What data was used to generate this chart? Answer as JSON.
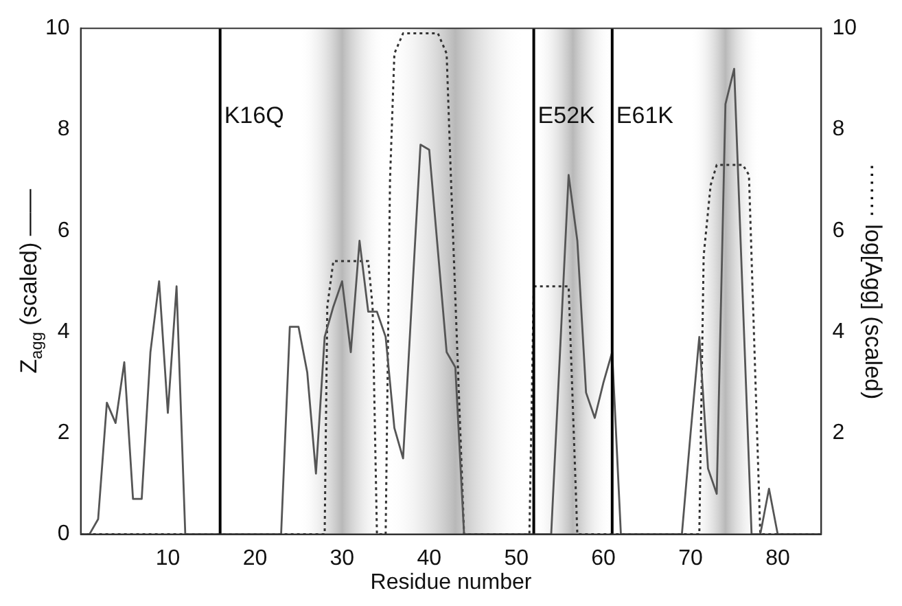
{
  "chart_data": {
    "type": "line",
    "xlabel": "Residue number",
    "ylabel": "Z$_{agg}$ (scaled) ——",
    "y2label": "······· log[Agg] (scaled)",
    "xlim": [
      0,
      85
    ],
    "xticks": [
      10,
      20,
      30,
      40,
      50,
      60,
      70,
      80
    ],
    "ylim": [
      0,
      10
    ],
    "yticks": [
      0,
      2,
      4,
      6,
      8,
      10
    ],
    "y2lim": [
      0,
      10
    ],
    "y2ticks": [
      2,
      4,
      6,
      8,
      10
    ],
    "grid": false,
    "legend": false,
    "marker": "none",
    "series": [
      {
        "color": "#555555",
        "line_style": "solid",
        "x": [
          0,
          1,
          2,
          3,
          4,
          5,
          6,
          7,
          8,
          9,
          10,
          11,
          12,
          23,
          24,
          25,
          26,
          27,
          28,
          29,
          30,
          31,
          32,
          33,
          34,
          35,
          36,
          37,
          39,
          40,
          42,
          43,
          44,
          54,
          56,
          57,
          58,
          59,
          60,
          61,
          62,
          69,
          70,
          71,
          72,
          73,
          74,
          75,
          77,
          78,
          79,
          80,
          85
        ],
        "values": [
          0,
          0,
          0.3,
          2.6,
          2.2,
          3.4,
          0.7,
          0.7,
          3.6,
          5.0,
          2.4,
          4.9,
          0,
          0,
          4.1,
          4.1,
          3.2,
          1.2,
          3.9,
          4.5,
          5.0,
          3.6,
          5.8,
          4.4,
          4.4,
          3.9,
          2.1,
          1.5,
          7.7,
          7.6,
          3.6,
          3.3,
          0,
          0,
          7.1,
          5.8,
          2.8,
          2.3,
          3.0,
          3.6,
          0,
          0,
          2.0,
          3.9,
          1.3,
          0.8,
          8.5,
          9.2,
          0,
          0,
          0.9,
          0,
          0
        ]
      },
      {
        "color": "#333333",
        "line_style": "dotted",
        "axis": "y2",
        "x": [
          0,
          28,
          28.3,
          29,
          33,
          33.5,
          34,
          35,
          35.5,
          36,
          37,
          41,
          42,
          42.5,
          44,
          51.5,
          52,
          56,
          57,
          71,
          71.5,
          72.3,
          73,
          76,
          76.7,
          78,
          85
        ],
        "values": [
          0,
          0,
          4.5,
          5.4,
          5.4,
          4.5,
          0,
          0,
          7,
          9.5,
          9.9,
          9.9,
          9.5,
          7,
          0,
          0,
          4.9,
          4.9,
          0,
          0,
          5.5,
          6.9,
          7.3,
          7.3,
          7.1,
          0,
          0
        ]
      }
    ],
    "bands": [
      {
        "axis": "x",
        "from": 25,
        "to": 35,
        "color": "#b8b8b8"
      },
      {
        "axis": "x",
        "from": 35,
        "to": 51,
        "color": "#b8b8b8"
      },
      {
        "axis": "x",
        "from": 52,
        "to": 61,
        "color": "#b8b8b8"
      },
      {
        "axis": "x",
        "from": 70,
        "to": 78,
        "color": "#b8b8b8"
      }
    ],
    "ref_lines": [
      {
        "axis": "x",
        "value": 16,
        "label": "K16Q",
        "color": "#000000"
      },
      {
        "axis": "x",
        "value": 52,
        "label": "E52K",
        "color": "#000000"
      },
      {
        "axis": "x",
        "value": 61,
        "label": "E61K",
        "color": "#000000"
      }
    ]
  }
}
